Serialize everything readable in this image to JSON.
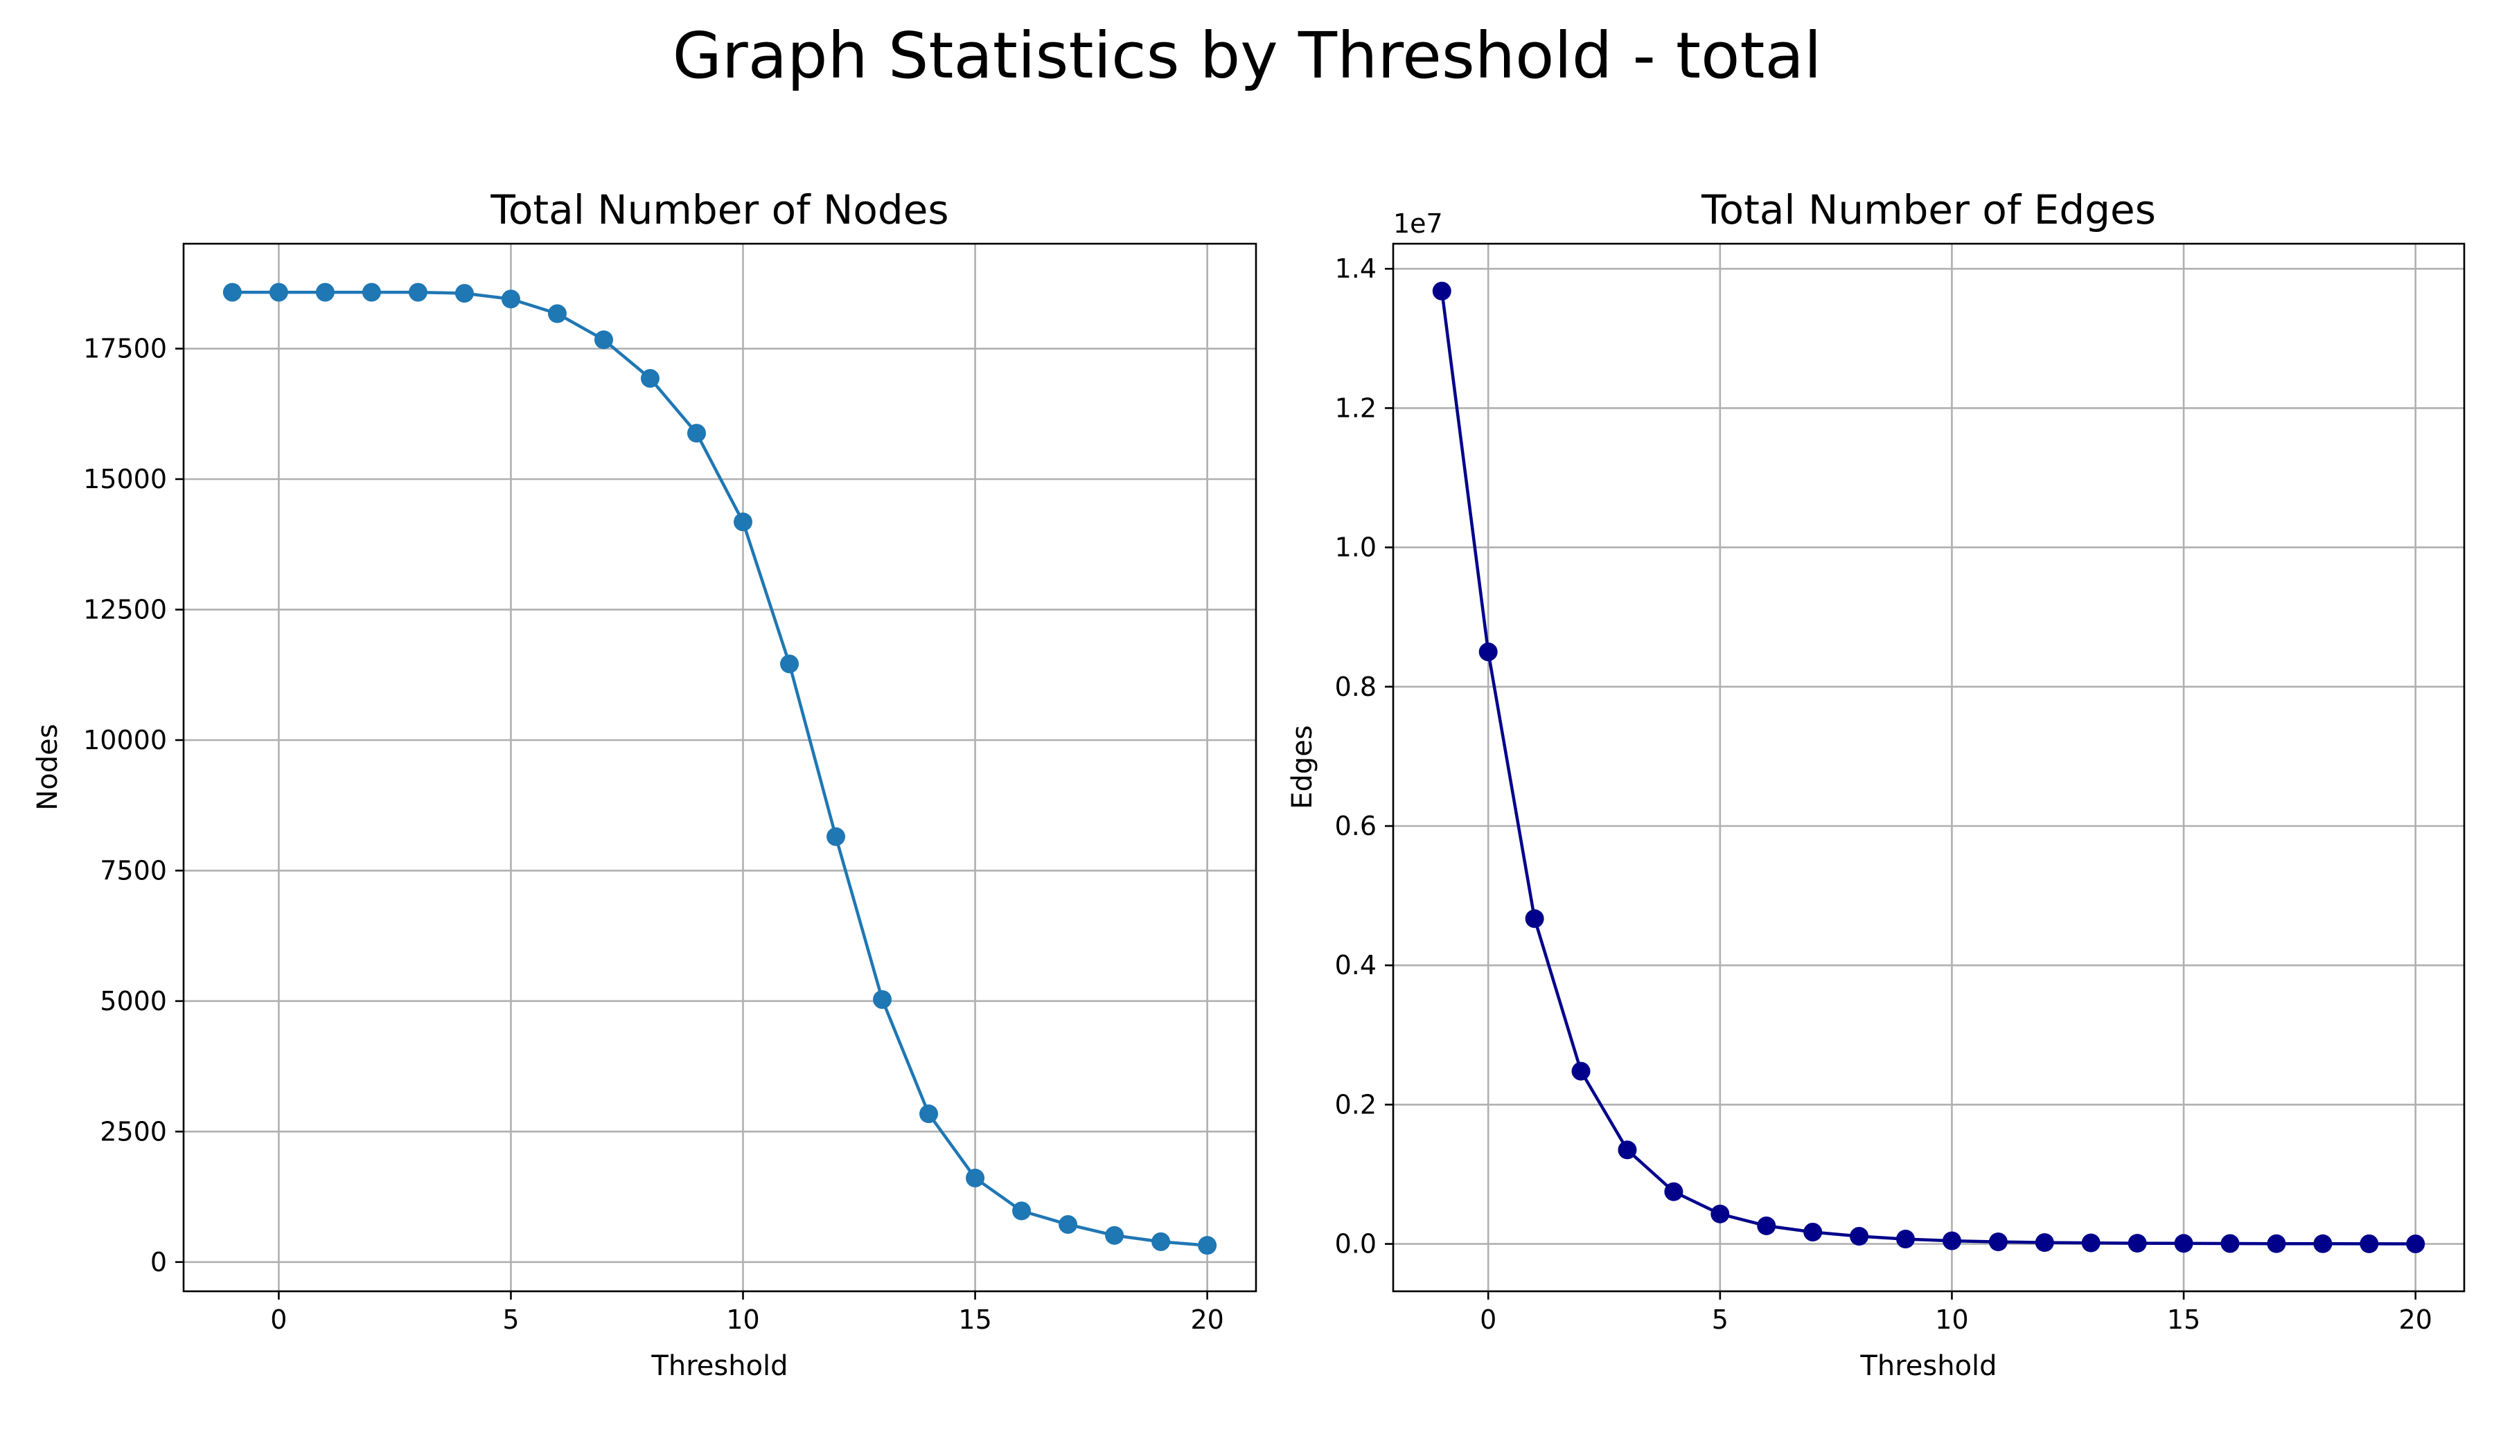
{
  "figure": {
    "title": "Graph Statistics by Threshold - total"
  },
  "chart_data": [
    {
      "type": "line",
      "title": "Total Number of Nodes",
      "xlabel": "Threshold",
      "ylabel": "Nodes",
      "y_offset_label": "",
      "x": [
        -1,
        0,
        1,
        2,
        3,
        4,
        5,
        6,
        7,
        8,
        9,
        10,
        11,
        12,
        13,
        14,
        15,
        16,
        17,
        18,
        19,
        20
      ],
      "series": [
        {
          "marker": "circle",
          "color": "#1f77b4",
          "values": [
            18580,
            18580,
            18580,
            18580,
            18580,
            18560,
            18450,
            18170,
            17670,
            16930,
            15880,
            14180,
            11460,
            8150,
            5030,
            2840,
            1610,
            980,
            720,
            510,
            390,
            320
          ]
        }
      ],
      "xlim": [
        -2.05,
        21.05
      ],
      "ylim": [
        -560,
        19510
      ],
      "xticks": [
        0,
        5,
        10,
        15,
        20
      ],
      "yticks": [
        0,
        2500,
        5000,
        7500,
        10000,
        12500,
        15000,
        17500
      ],
      "ytick_labels": [
        "0",
        "2500",
        "5000",
        "7500",
        "10000",
        "12500",
        "15000",
        "17500"
      ],
      "grid": true,
      "legend": "none"
    },
    {
      "type": "line",
      "title": "Total Number of Edges",
      "xlabel": "Threshold",
      "ylabel": "Edges",
      "y_offset_label": "1e7",
      "x": [
        -1,
        0,
        1,
        2,
        3,
        4,
        5,
        6,
        7,
        8,
        9,
        10,
        11,
        12,
        13,
        14,
        15,
        16,
        17,
        18,
        19,
        20
      ],
      "series": [
        {
          "marker": "circle",
          "color": "#00008b",
          "values": [
            13680000,
            8500000,
            4670000,
            2480000,
            1350000,
            750000,
            430000,
            260000,
            170000,
            110000,
            70000,
            45000,
            30000,
            20000,
            15000,
            10000,
            8000,
            6000,
            4000,
            3000,
            2000,
            1000
          ]
        }
      ],
      "xlim": [
        -2.05,
        21.05
      ],
      "ylim": [
        -680000,
        14360000
      ],
      "xticks": [
        0,
        5,
        10,
        15,
        20
      ],
      "yticks": [
        0,
        2000000,
        4000000,
        6000000,
        8000000,
        10000000,
        12000000,
        14000000
      ],
      "ytick_labels": [
        "0.0",
        "0.2",
        "0.4",
        "0.6",
        "0.8",
        "1.0",
        "1.2",
        "1.4"
      ],
      "grid": true,
      "legend": "none"
    }
  ]
}
